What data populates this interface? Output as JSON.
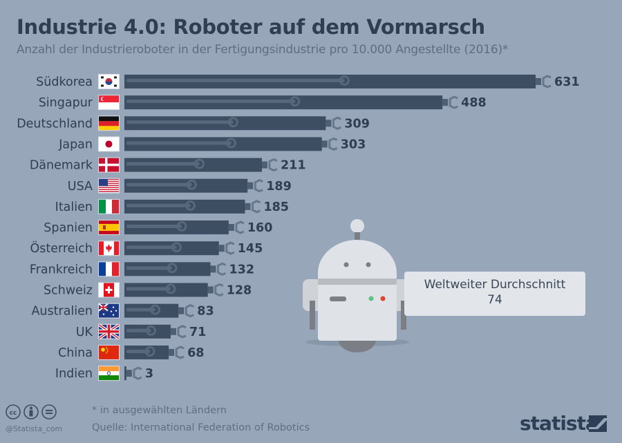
{
  "title": "Industrie 4.0: Roboter auf dem Vormarsch",
  "subtitle": "Anzahl der Industrieroboter in der Fertigungsindustrie pro 10.000 Angestellte (2016)*",
  "chart_data": {
    "type": "bar",
    "orientation": "horizontal",
    "title": "Industrie 4.0: Roboter auf dem Vormarsch",
    "categories": [
      "Südkorea",
      "Singapur",
      "Deutschland",
      "Japan",
      "Dänemark",
      "USA",
      "Italien",
      "Spanien",
      "Österreich",
      "Frankreich",
      "Schweiz",
      "Australien",
      "UK",
      "China",
      "Indien"
    ],
    "values": [
      631,
      488,
      309,
      303,
      211,
      189,
      185,
      160,
      145,
      132,
      128,
      83,
      71,
      68,
      3
    ],
    "flag_icons": [
      "flag-kr",
      "flag-sg",
      "flag-de",
      "flag-jp",
      "flag-dk",
      "flag-us",
      "flag-it",
      "flag-es",
      "flag-ca",
      "flag-fr",
      "flag-ch",
      "flag-au",
      "flag-gb",
      "flag-cn",
      "flag-in"
    ],
    "grid": false,
    "data_labels": true,
    "annotation": {
      "label": "Weltweiter Durchschnitt",
      "value": 74
    },
    "colors": {
      "bar": "#3e4e62",
      "bar_highlight": "#57687c",
      "background": "#97a6b8"
    }
  },
  "footer": {
    "footnote": "* in ausgewählten Ländern",
    "source": "Quelle: International Federation of Robotics",
    "handle": "@Statista_com",
    "brand": "statista"
  }
}
